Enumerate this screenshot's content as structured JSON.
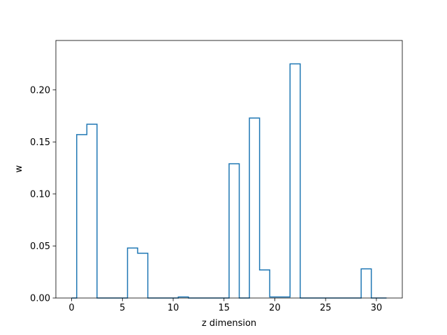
{
  "chart_data": {
    "type": "line",
    "drawstyle": "steps-mid",
    "xlabel": "z dimension",
    "ylabel": "w",
    "xlim": [
      -1.55,
      32.55
    ],
    "ylim": [
      0,
      0.2475
    ],
    "xticks": [
      0,
      5,
      10,
      15,
      20,
      25,
      30
    ],
    "yticks": [
      0.0,
      0.05,
      0.1,
      0.15,
      0.2
    ],
    "xtick_labels": [
      "0",
      "5",
      "10",
      "15",
      "20",
      "25",
      "30"
    ],
    "ytick_labels": [
      "0.00",
      "0.05",
      "0.10",
      "0.15",
      "0.20"
    ],
    "grid": false,
    "color": "#1f77b4",
    "x": [
      0,
      1,
      2,
      3,
      4,
      5,
      6,
      7,
      8,
      9,
      10,
      11,
      12,
      13,
      14,
      15,
      16,
      17,
      18,
      19,
      20,
      21,
      22,
      23,
      24,
      25,
      26,
      27,
      28,
      29,
      30,
      31
    ],
    "y": [
      0,
      0.157,
      0.167,
      0,
      0,
      0,
      0.048,
      0.043,
      0,
      0,
      0,
      0.001,
      0,
      0,
      0,
      0,
      0.129,
      0,
      0.173,
      0.027,
      0.001,
      0.001,
      0.225,
      0,
      0,
      0,
      0,
      0,
      0,
      0.028,
      0,
      0
    ]
  }
}
